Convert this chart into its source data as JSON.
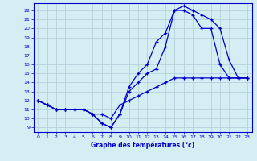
{
  "xlabel": "Graphe des températures (°c)",
  "xlim": [
    -0.5,
    23.5
  ],
  "ylim": [
    8.5,
    22.8
  ],
  "yticks": [
    9,
    10,
    11,
    12,
    13,
    14,
    15,
    16,
    17,
    18,
    19,
    20,
    21,
    22
  ],
  "xticks": [
    0,
    1,
    2,
    3,
    4,
    5,
    6,
    7,
    8,
    9,
    10,
    11,
    12,
    13,
    14,
    15,
    16,
    17,
    18,
    19,
    20,
    21,
    22,
    23
  ],
  "bg_color": "#d4eef4",
  "line_color": "#0000cc",
  "grid_color": "#b0ccd8",
  "line1_x": [
    0,
    1,
    2,
    3,
    4,
    5,
    6,
    7,
    8,
    9,
    10,
    11,
    12,
    13,
    14,
    15,
    16,
    17,
    18,
    19,
    20,
    21,
    22,
    23
  ],
  "line1_y": [
    12.0,
    11.5,
    11.0,
    11.0,
    11.0,
    11.0,
    10.5,
    10.5,
    10.0,
    11.5,
    12.0,
    12.5,
    13.0,
    13.5,
    14.0,
    14.5,
    14.5,
    14.5,
    14.5,
    14.5,
    14.5,
    14.5,
    14.5,
    14.5
  ],
  "line2_x": [
    0,
    1,
    2,
    3,
    4,
    5,
    6,
    7,
    8,
    9,
    10,
    11,
    12,
    13,
    14,
    15,
    16,
    17,
    18,
    19,
    20,
    21,
    22,
    23
  ],
  "line2_y": [
    12.0,
    11.5,
    11.0,
    11.0,
    11.0,
    11.0,
    10.5,
    9.5,
    9.0,
    10.5,
    13.0,
    14.0,
    15.0,
    15.5,
    18.0,
    22.0,
    22.0,
    21.5,
    20.0,
    20.0,
    16.0,
    14.5,
    14.5,
    14.5
  ],
  "line3_x": [
    0,
    1,
    2,
    3,
    4,
    5,
    6,
    7,
    8,
    9,
    10,
    11,
    12,
    13,
    14,
    15,
    16,
    17,
    18,
    19,
    20,
    21,
    22,
    23
  ],
  "line3_y": [
    12.0,
    11.5,
    11.0,
    11.0,
    11.0,
    11.0,
    10.5,
    9.5,
    9.0,
    10.5,
    13.5,
    15.0,
    16.0,
    18.5,
    19.5,
    22.0,
    22.5,
    22.0,
    21.5,
    21.0,
    20.0,
    16.5,
    14.5,
    14.5
  ]
}
